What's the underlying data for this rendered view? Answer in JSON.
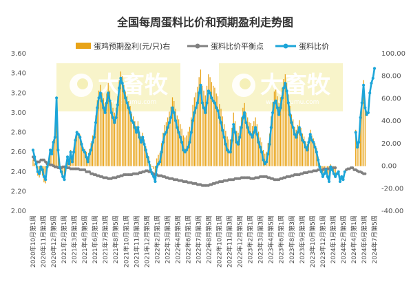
{
  "chart_data": {
    "type": "bar+line",
    "title": "全国每周蛋料比价和预期盈利走势图",
    "legend": {
      "placement": "top",
      "items": [
        {
          "label": "蛋鸡预期盈利(元/只)右",
          "kind": "bar",
          "color": "#E8A317"
        },
        {
          "label": "蛋料比价平衡点",
          "kind": "line-marker",
          "color": "#808080"
        },
        {
          "label": "蛋料比价",
          "kind": "line-marker",
          "color": "#1CA5D8"
        }
      ]
    },
    "y_left": {
      "min": 2.0,
      "max": 3.6,
      "ticks": [
        "2.00",
        "2.20",
        "2.40",
        "2.60",
        "2.80",
        "3.00",
        "3.20",
        "3.40",
        "3.60"
      ]
    },
    "y_right": {
      "min": -40,
      "max": 100,
      "ticks": [
        "-40.00",
        "-20.00",
        "0.00",
        "20.00",
        "40.00",
        "60.00",
        "80.00",
        "100.00"
      ]
    },
    "x_labels": [
      "2020年10月第1周",
      "2020年11月第3周",
      "2020年12月第5周",
      "2021年2月第1周",
      "2021年3月第3周",
      "2021年4月第5周",
      "2021年6月第1周",
      "2021年7月第3周",
      "2021年8月第5周",
      "2021年10月第1周",
      "2021年11月第3周",
      "2021年12月第5周",
      "2022年2月第1周",
      "2022年3月第3周",
      "2022年4月第5周",
      "2022年6月第1周",
      "2022年7月第3周",
      "2022年8月第5周",
      "2022年10月第1周",
      "2022年11月第3周",
      "2022年12月第5周",
      "2023年2月第1周",
      "2023年3月第3周",
      "2023年4月第5周",
      "2023年6月第1周",
      "2023年7月第3周",
      "2023年8月第5周",
      "2023年9月第3周",
      "2023年10月第5周",
      "2023年12月第1周",
      "2024年1月第3周",
      "2024年2月第5周",
      "2024年4月第1周",
      "2024年5月第3周",
      "2024年6月第5周",
      "2024年7月第5周"
    ],
    "x_labels_shown": [
      "2020年10月第1周",
      "2020年11月第3周",
      "2020年12月第5周",
      "2021年2月第1周",
      "2021年3月第3周",
      "2021年4月第5周",
      "2021年6月第1周",
      "2021年7月第3周",
      "2021年8月第5周",
      "2021年10月第1周",
      "2021年11月第3周",
      "2021年12月第5周",
      "2022年2月第1周",
      "2022年3月第3周",
      "2022年4月第5周",
      "2022年6月第1周",
      "2022年7月第3周",
      "2022年8月第5周",
      "2022年10月第1周",
      "2022年11月第3周",
      "2022年12月第5周",
      "2023年2月第1周",
      "2023年3月第3周",
      "2023年4月第5周",
      "2023年6月第1周",
      "2023年8月第3周",
      "2023年9月第3周",
      "2023年10月第5周",
      "2023年12月第1周",
      "2024年1月第3周",
      "2024年2月第5周",
      "2024年4月第1周",
      "2024年6月第3周",
      "2024年7月第5周"
    ],
    "series": [
      {
        "name": "蛋料比价",
        "axis": "left",
        "color": "#1CA5D8",
        "values": [
          2.62,
          2.55,
          2.48,
          2.4,
          2.38,
          2.45,
          2.42,
          2.35,
          2.32,
          2.45,
          2.5,
          2.62,
          2.58,
          2.7,
          2.75,
          3.15,
          2.62,
          2.45,
          2.4,
          2.35,
          2.32,
          2.45,
          2.55,
          2.48,
          2.6,
          2.5,
          2.6,
          2.72,
          2.8,
          2.78,
          2.75,
          2.68,
          2.62,
          2.6,
          2.55,
          2.5,
          2.58,
          2.62,
          2.7,
          2.75,
          2.9,
          3.05,
          3.15,
          3.2,
          3.12,
          3.05,
          3.0,
          3.1,
          3.2,
          3.12,
          3.0,
          2.95,
          2.9,
          2.95,
          3.08,
          3.25,
          3.35,
          3.3,
          3.22,
          3.15,
          3.1,
          3.05,
          3.0,
          2.92,
          2.9,
          2.85,
          2.8,
          2.85,
          2.75,
          2.7,
          2.75,
          2.68,
          2.62,
          2.55,
          2.5,
          2.42,
          2.38,
          2.35,
          2.3,
          2.45,
          2.48,
          2.5,
          2.6,
          2.7,
          2.78,
          2.8,
          2.85,
          2.9,
          2.95,
          3.05,
          3.0,
          2.92,
          2.85,
          2.8,
          2.75,
          2.7,
          2.62,
          2.6,
          2.62,
          2.65,
          2.7,
          2.8,
          2.92,
          3.0,
          3.05,
          3.1,
          3.2,
          3.28,
          3.1,
          3.05,
          3.0,
          3.1,
          3.22,
          3.2,
          3.15,
          3.12,
          3.1,
          3.05,
          3.02,
          2.95,
          2.9,
          2.82,
          2.75,
          2.68,
          2.62,
          2.6,
          2.6,
          2.72,
          2.88,
          2.8,
          2.7,
          2.68,
          2.75,
          2.85,
          2.95,
          3.0,
          2.9,
          2.85,
          2.8,
          2.78,
          2.75,
          2.8,
          2.85,
          2.78,
          2.7,
          2.65,
          2.6,
          2.52,
          2.48,
          2.5,
          2.58,
          2.68,
          2.85,
          3.0,
          3.1,
          3.12,
          3.05,
          2.98,
          3.05,
          3.15,
          3.25,
          3.3,
          3.22,
          3.1,
          2.98,
          2.9,
          2.85,
          2.78,
          2.75,
          2.8,
          2.85,
          2.78,
          2.72,
          2.7,
          2.65,
          2.62,
          2.7,
          2.78,
          2.72,
          2.7,
          2.65,
          2.6,
          2.52,
          2.45,
          2.4,
          2.35,
          2.38,
          2.42,
          2.35,
          2.3,
          2.45,
          2.42,
          2.38,
          2.35,
          2.38,
          2.4,
          2.3,
          2.35,
          2.32,
          2.4,
          null,
          null,
          null,
          null,
          null,
          null,
          2.8,
          2.65,
          2.7,
          2.95,
          3.1,
          3.28,
          3.05,
          2.98,
          3.0,
          3.2,
          3.3,
          3.35,
          3.45
        ]
      },
      {
        "name": "蛋料比价平衡点",
        "axis": "left",
        "color": "#808080",
        "values": [
          2.55,
          2.52,
          2.5,
          2.5,
          2.5,
          2.52,
          2.52,
          2.52,
          2.5,
          2.48,
          2.48,
          2.47,
          2.47,
          2.46,
          2.45,
          2.45,
          2.44,
          2.44,
          2.44,
          2.45,
          2.45,
          2.45,
          2.44,
          2.44,
          2.43,
          2.43,
          2.43,
          2.43,
          2.43,
          2.43,
          2.42,
          2.42,
          2.42,
          2.42,
          2.4,
          2.4,
          2.4,
          2.38,
          2.38,
          2.37,
          2.37,
          2.36,
          2.36,
          2.35,
          2.35,
          2.34,
          2.34,
          2.34,
          2.33,
          2.33,
          2.33,
          2.34,
          2.34,
          2.34,
          2.35,
          2.35,
          2.36,
          2.36,
          2.37,
          2.37,
          2.37,
          2.37,
          2.37,
          2.37,
          2.38,
          2.38,
          2.38,
          2.38,
          2.39,
          2.39,
          2.4,
          2.4,
          2.41,
          2.41,
          2.4,
          2.4,
          2.39,
          2.38,
          2.37,
          2.37,
          2.36,
          2.36,
          2.36,
          2.35,
          2.35,
          2.34,
          2.34,
          2.33,
          2.33,
          2.33,
          2.32,
          2.32,
          2.32,
          2.31,
          2.31,
          2.31,
          2.3,
          2.3,
          2.3,
          2.29,
          2.29,
          2.29,
          2.28,
          2.28,
          2.28,
          2.27,
          2.27,
          2.27,
          2.26,
          2.26,
          2.26,
          2.26,
          2.26,
          2.27,
          2.27,
          2.28,
          2.28,
          2.29,
          2.29,
          2.3,
          2.3,
          2.3,
          2.31,
          2.31,
          2.31,
          2.32,
          2.32,
          2.32,
          2.32,
          2.33,
          2.33,
          2.33,
          2.33,
          2.34,
          2.34,
          2.34,
          2.34,
          2.34,
          2.34,
          2.33,
          2.33,
          2.33,
          2.34,
          2.34,
          2.34,
          2.35,
          2.35,
          2.35,
          2.35,
          2.35,
          2.34,
          2.34,
          2.33,
          2.33,
          2.32,
          2.32,
          2.32,
          2.32,
          2.33,
          2.33,
          2.34,
          2.34,
          2.35,
          2.35,
          2.35,
          2.36,
          2.36,
          2.37,
          2.37,
          2.37,
          2.37,
          2.38,
          2.38,
          2.39,
          2.39,
          2.39,
          2.4,
          2.4,
          2.4,
          2.41,
          2.41,
          2.41,
          2.42,
          2.42,
          2.42,
          2.42,
          2.43,
          2.43,
          2.43,
          2.43,
          2.43,
          2.44,
          2.44,
          2.44,
          null,
          null,
          null,
          null,
          null,
          null,
          2.42,
          2.43,
          2.43,
          2.44,
          2.44,
          2.42,
          2.42,
          2.41,
          2.4,
          2.4,
          2.39,
          2.38,
          2.38
        ]
      },
      {
        "name": "蛋鸡预期盈利(元/只)右",
        "axis": "right",
        "color": "#E8A317"
      }
    ]
  },
  "watermark": {
    "text": "大畜牧",
    "url": "www.dxumu.com"
  }
}
